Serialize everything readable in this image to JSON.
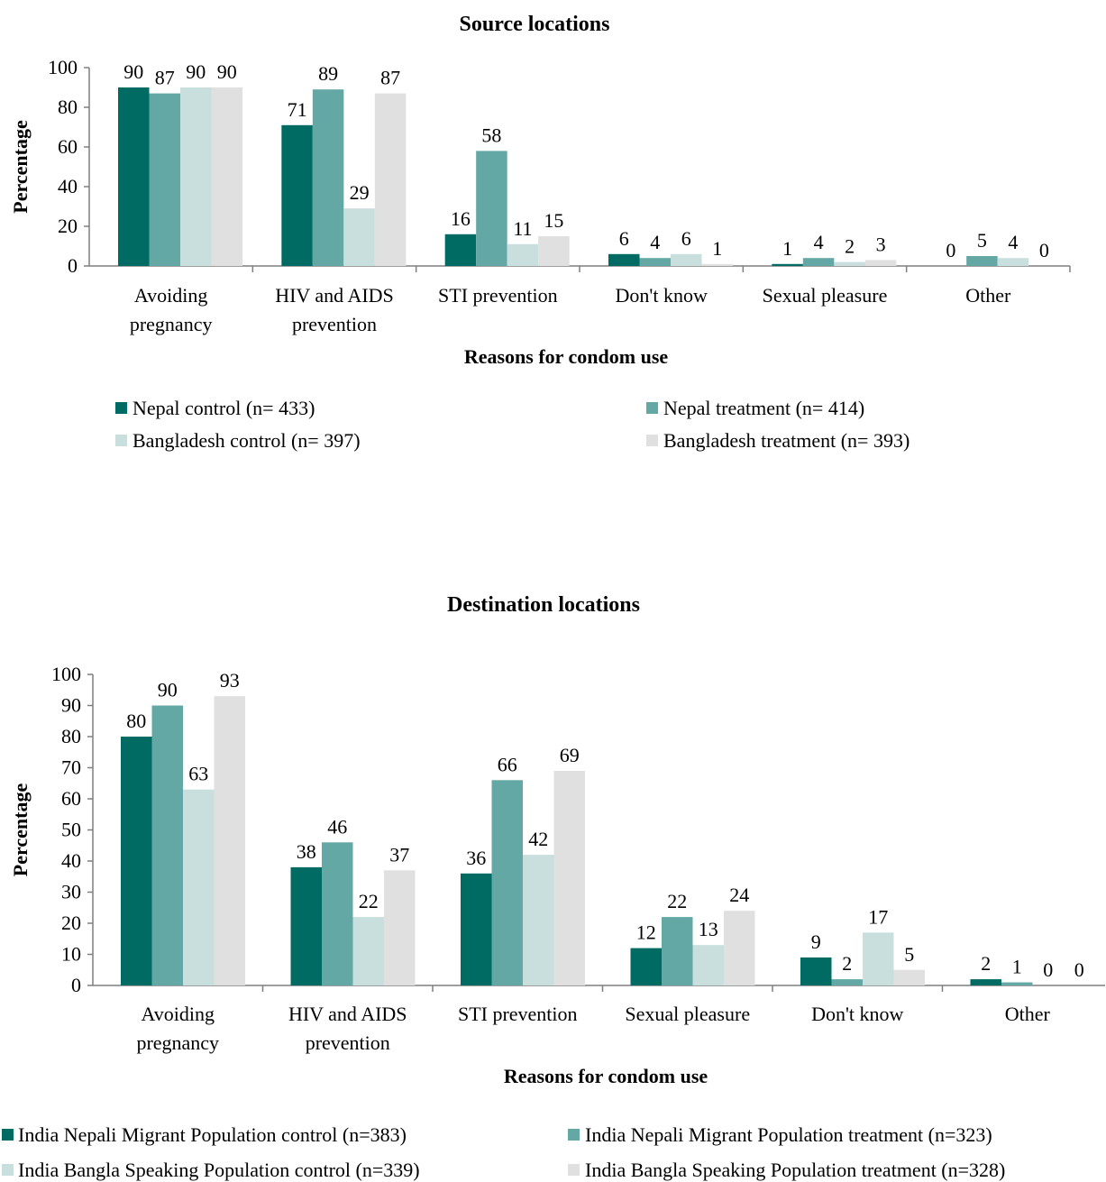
{
  "colors": {
    "series1": "#006b63",
    "series2": "#64a8a5",
    "series3": "#c8dfde",
    "series4": "#e0e0e0",
    "axis": "#7f7f7f"
  },
  "chart_data": [
    {
      "type": "bar",
      "title": "Source locations",
      "xlabel": "Reasons for condom use",
      "ylabel": "Percentage",
      "ylim": [
        0,
        100
      ],
      "yticks": [
        "0",
        "20",
        "40",
        "60",
        "80",
        "100"
      ],
      "categories": [
        [
          "Avoiding",
          "pregnancy"
        ],
        [
          "HIV and AIDS",
          "prevention"
        ],
        [
          "STI prevention"
        ],
        [
          "Don't know"
        ],
        [
          "Sexual pleasure"
        ],
        [
          "Other"
        ]
      ],
      "series": [
        {
          "name": "Nepal control (n= 433)",
          "values": [
            90,
            71,
            16,
            6,
            1,
            0
          ]
        },
        {
          "name": "Nepal treatment (n= 414)",
          "values": [
            87,
            89,
            58,
            4,
            4,
            5
          ]
        },
        {
          "name": "Bangladesh control (n= 397)",
          "values": [
            90,
            29,
            11,
            6,
            2,
            4
          ]
        },
        {
          "name": "Bangladesh treatment (n= 393)",
          "values": [
            90,
            87,
            15,
            1,
            3,
            0
          ]
        }
      ],
      "grid": false,
      "legend": "bottom"
    },
    {
      "type": "bar",
      "title": "Destination locations",
      "xlabel": "Reasons for condom use",
      "ylabel": "Percentage",
      "ylim": [
        0,
        100
      ],
      "yticks": [
        "0",
        "10",
        "20",
        "30",
        "40",
        "50",
        "60",
        "70",
        "80",
        "90",
        "100"
      ],
      "categories": [
        [
          "Avoiding",
          "pregnancy"
        ],
        [
          "HIV and AIDS",
          "prevention"
        ],
        [
          "STI prevention"
        ],
        [
          "Sexual pleasure"
        ],
        [
          "Don't know"
        ],
        [
          "Other"
        ]
      ],
      "series": [
        {
          "name": "India Nepali Migrant Population control (n=383)",
          "values": [
            80,
            38,
            36,
            12,
            9,
            2
          ]
        },
        {
          "name": "India Nepali Migrant Population treatment (n=323)",
          "values": [
            90,
            46,
            66,
            22,
            2,
            1
          ]
        },
        {
          "name": "India Bangla Speaking Population control (n=339)",
          "values": [
            63,
            22,
            42,
            13,
            17,
            0
          ]
        },
        {
          "name": "India Bangla Speaking Population treatment (n=328)",
          "values": [
            93,
            37,
            69,
            24,
            5,
            0
          ]
        }
      ],
      "grid": false,
      "legend": "bottom"
    }
  ]
}
